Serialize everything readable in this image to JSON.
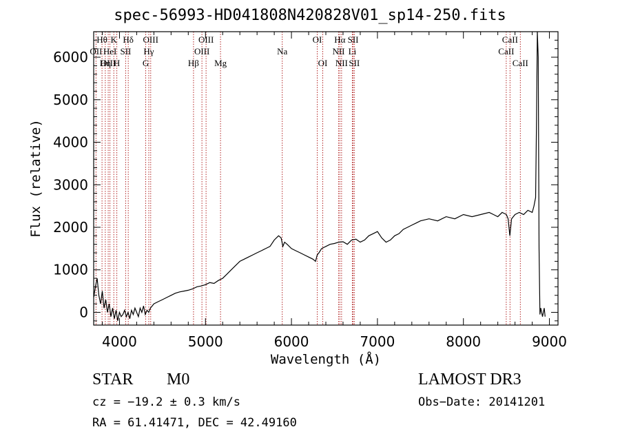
{
  "chart_data": {
    "type": "line",
    "title": "spec-56993-HD041808N420828V01_sp14-250.fits",
    "xlabel": "Wavelength (Å)",
    "ylabel": "Flux (relative)",
    "xlim": [
      3700,
      9100
    ],
    "ylim": [
      -300,
      6600
    ],
    "xticks": [
      4000,
      5000,
      6000,
      7000,
      8000,
      9000
    ],
    "yticks": [
      0,
      1000,
      2000,
      3000,
      4000,
      5000,
      6000
    ],
    "series": [
      {
        "name": "spectrum",
        "x": [
          3700,
          3720,
          3740,
          3760,
          3780,
          3800,
          3820,
          3840,
          3860,
          3880,
          3900,
          3920,
          3940,
          3960,
          3980,
          4000,
          4020,
          4040,
          4060,
          4080,
          4100,
          4120,
          4140,
          4160,
          4180,
          4200,
          4220,
          4240,
          4260,
          4280,
          4300,
          4320,
          4340,
          4360,
          4380,
          4400,
          4450,
          4500,
          4550,
          4600,
          4650,
          4700,
          4750,
          4800,
          4850,
          4900,
          4950,
          5000,
          5050,
          5100,
          5150,
          5200,
          5250,
          5300,
          5350,
          5400,
          5450,
          5500,
          5550,
          5600,
          5650,
          5700,
          5750,
          5800,
          5850,
          5880,
          5900,
          5920,
          5950,
          6000,
          6050,
          6100,
          6150,
          6200,
          6250,
          6280,
          6300,
          6320,
          6350,
          6400,
          6450,
          6500,
          6550,
          6600,
          6650,
          6700,
          6750,
          6800,
          6850,
          6900,
          6950,
          7000,
          7050,
          7100,
          7150,
          7200,
          7250,
          7300,
          7350,
          7400,
          7450,
          7500,
          7600,
          7700,
          7800,
          7900,
          8000,
          8100,
          8200,
          8300,
          8350,
          8400,
          8450,
          8500,
          8520,
          8540,
          8560,
          8600,
          8650,
          8700,
          8750,
          8800,
          8820,
          8840,
          8850,
          8860,
          8870,
          8880,
          8890,
          8900,
          8920,
          8940,
          8950
        ],
        "y": [
          350,
          600,
          800,
          400,
          200,
          500,
          100,
          300,
          0,
          200,
          -100,
          100,
          -150,
          50,
          -200,
          0,
          -100,
          -50,
          50,
          -100,
          0,
          -150,
          50,
          -50,
          100,
          0,
          -100,
          100,
          0,
          150,
          -50,
          50,
          0,
          100,
          150,
          200,
          250,
          300,
          350,
          400,
          450,
          480,
          500,
          520,
          550,
          600,
          620,
          650,
          700,
          680,
          750,
          800,
          900,
          1000,
          1100,
          1200,
          1250,
          1300,
          1350,
          1400,
          1450,
          1500,
          1550,
          1700,
          1800,
          1750,
          1550,
          1650,
          1600,
          1500,
          1450,
          1400,
          1350,
          1300,
          1250,
          1200,
          1350,
          1400,
          1500,
          1550,
          1600,
          1620,
          1650,
          1660,
          1600,
          1700,
          1720,
          1650,
          1700,
          1800,
          1850,
          1900,
          1750,
          1650,
          1700,
          1800,
          1850,
          1950,
          2000,
          2050,
          2100,
          2150,
          2200,
          2150,
          2250,
          2200,
          2300,
          2250,
          2300,
          2350,
          2300,
          2250,
          2350,
          2300,
          2200,
          1800,
          2200,
          2300,
          2350,
          2300,
          2400,
          2350,
          2500,
          2700,
          4500,
          6600,
          6000,
          1500,
          -50,
          100,
          -100,
          100,
          -100
        ]
      }
    ],
    "lines": [
      {
        "name": "Hθ",
        "x": 3797,
        "row": 0
      },
      {
        "name": "OII",
        "x": 3727,
        "row": 1
      },
      {
        "name": "OIII",
        "x": 3869,
        "row": 2
      },
      {
        "name": "K",
        "x": 3934,
        "row": 0
      },
      {
        "name": "HeI",
        "x": 3889,
        "row": 1
      },
      {
        "name": "Hη",
        "x": 3835,
        "row": 2
      },
      {
        "name": "H",
        "x": 3969,
        "row": 2
      },
      {
        "name": "Hδ",
        "x": 4102,
        "row": 0
      },
      {
        "name": "SII",
        "x": 4072,
        "row": 1
      },
      {
        "name": "OIII",
        "x": 4363,
        "row": 0
      },
      {
        "name": "Hγ",
        "x": 4341,
        "row": 1
      },
      {
        "name": "G",
        "x": 4305,
        "row": 2
      },
      {
        "name": "OIII",
        "x": 5007,
        "row": 0
      },
      {
        "name": "OIII",
        "x": 4959,
        "row": 1
      },
      {
        "name": "Hβ",
        "x": 4861,
        "row": 2
      },
      {
        "name": "Mg",
        "x": 5175,
        "row": 2
      },
      {
        "name": "Na",
        "x": 5893,
        "row": 1
      },
      {
        "name": "OI",
        "x": 6300,
        "row": 0
      },
      {
        "name": "OI",
        "x": 6364,
        "row": 2
      },
      {
        "name": "Hα",
        "x": 6563,
        "row": 0
      },
      {
        "name": "SII",
        "x": 6717,
        "row": 0
      },
      {
        "name": "NII",
        "x": 6548,
        "row": 1
      },
      {
        "name": "Li",
        "x": 6708,
        "row": 1
      },
      {
        "name": "NII",
        "x": 6583,
        "row": 2
      },
      {
        "name": "SII",
        "x": 6731,
        "row": 2
      },
      {
        "name": "CaII",
        "x": 8542,
        "row": 0
      },
      {
        "name": "CaII",
        "x": 8498,
        "row": 1
      },
      {
        "name": "CaII",
        "x": 8662,
        "row": 2
      }
    ]
  },
  "info": {
    "obj_class": "STAR",
    "subclass": "M0",
    "survey": "LAMOST DR3",
    "cz": "cz = −19.2 ± 0.3 km/s",
    "obs_date": "Obs−Date: 20141201",
    "coords": "RA =  61.41471, DEC =  42.49160"
  }
}
